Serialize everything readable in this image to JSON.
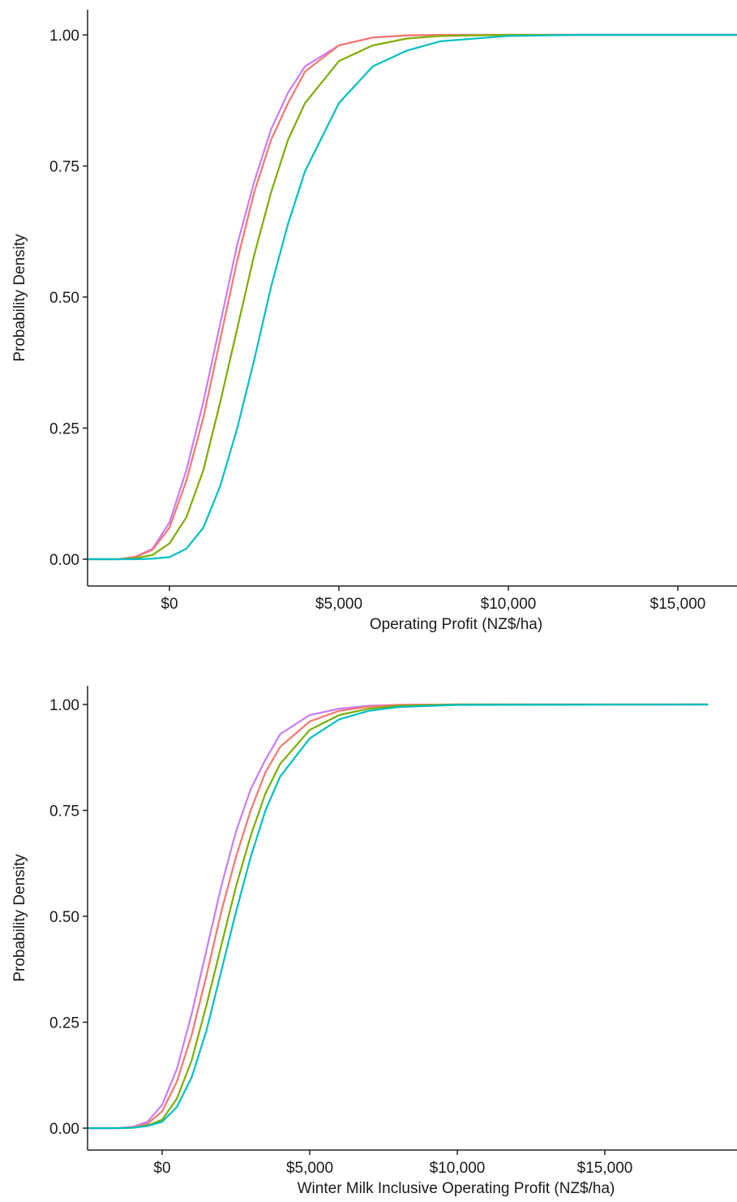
{
  "chart_data": [
    {
      "type": "line",
      "title": "",
      "xlabel": "Operating Profit (NZ$/ha)",
      "ylabel": "Probability Density",
      "xlim": [
        -3000,
        18500
      ],
      "ylim": [
        0,
        1
      ],
      "x_ticks": [
        0,
        5000,
        10000,
        15000
      ],
      "x_tick_labels": [
        "$0",
        "$5,000",
        "$10,000",
        "$15,000"
      ],
      "y_ticks": [
        0,
        0.25,
        0.5,
        0.75,
        1
      ],
      "y_tick_labels": [
        "0.00",
        "0.25",
        "0.50",
        "0.75",
        "1.00"
      ],
      "grid": false,
      "legend": "none",
      "series": [
        {
          "color": "#C77CFF",
          "x": [
            -3000,
            -1500,
            -1000,
            -500,
            0,
            500,
            1000,
            1500,
            2000,
            2500,
            3000,
            3500,
            4000,
            5000,
            6000,
            7000,
            8000,
            10000,
            18500
          ],
          "y": [
            0,
            0,
            0.005,
            0.02,
            0.07,
            0.17,
            0.3,
            0.45,
            0.6,
            0.72,
            0.82,
            0.89,
            0.94,
            0.98,
            0.995,
            0.999,
            1,
            1,
            1
          ]
        },
        {
          "color": "#F8766D",
          "x": [
            -3000,
            -1500,
            -1000,
            -500,
            0,
            500,
            1000,
            1500,
            2000,
            2500,
            3000,
            3500,
            4000,
            5000,
            6000,
            7000,
            8000,
            10000,
            18500
          ],
          "y": [
            0,
            0,
            0.004,
            0.018,
            0.06,
            0.15,
            0.27,
            0.42,
            0.57,
            0.7,
            0.8,
            0.87,
            0.93,
            0.98,
            0.995,
            0.999,
            1,
            1,
            1
          ]
        },
        {
          "color": "#7CAE00",
          "x": [
            -3000,
            -1500,
            -1000,
            -500,
            0,
            500,
            1000,
            1500,
            2000,
            2500,
            3000,
            3500,
            4000,
            5000,
            6000,
            7000,
            8000,
            10000,
            18500
          ],
          "y": [
            0,
            0,
            0.002,
            0.008,
            0.03,
            0.08,
            0.17,
            0.3,
            0.44,
            0.58,
            0.7,
            0.8,
            0.87,
            0.95,
            0.98,
            0.993,
            0.998,
            1,
            1
          ]
        },
        {
          "color": "#00BFC4",
          "x": [
            -3000,
            -1500,
            -1000,
            -500,
            0,
            500,
            1000,
            1500,
            2000,
            2500,
            3000,
            3500,
            4000,
            5000,
            6000,
            7000,
            8000,
            10000,
            12000,
            18500
          ],
          "y": [
            0,
            0,
            0,
            0.001,
            0.004,
            0.02,
            0.06,
            0.14,
            0.25,
            0.38,
            0.52,
            0.64,
            0.74,
            0.87,
            0.94,
            0.97,
            0.988,
            0.998,
            1,
            1
          ]
        }
      ]
    },
    {
      "type": "line",
      "title": "",
      "xlabel": "Winter Milk Inclusive Operating Profit (NZ$/ha)",
      "ylabel": "Probability Density",
      "xlim": [
        -3000,
        18500
      ],
      "ylim": [
        0,
        1
      ],
      "x_ticks": [
        0,
        5000,
        10000,
        15000
      ],
      "x_tick_labels": [
        "$0",
        "$5,000",
        "$10,000",
        "$15,000"
      ],
      "y_ticks": [
        0,
        0.25,
        0.5,
        0.75,
        1
      ],
      "y_tick_labels": [
        "0.00",
        "0.25",
        "0.50",
        "0.75",
        "1.00"
      ],
      "grid": false,
      "legend": "none",
      "series": [
        {
          "color": "#C77CFF",
          "x": [
            -3000,
            -1500,
            -1000,
            -500,
            0,
            500,
            1000,
            1500,
            2000,
            2500,
            3000,
            3500,
            4000,
            5000,
            6000,
            7000,
            8000,
            10000,
            18500
          ],
          "y": [
            0,
            0,
            0.003,
            0.015,
            0.055,
            0.14,
            0.27,
            0.42,
            0.57,
            0.7,
            0.8,
            0.87,
            0.93,
            0.975,
            0.99,
            0.997,
            0.999,
            1,
            1
          ]
        },
        {
          "color": "#F8766D",
          "x": [
            -3000,
            -1500,
            -1000,
            -500,
            0,
            500,
            1000,
            1500,
            2000,
            2500,
            3000,
            3500,
            4000,
            5000,
            6000,
            7000,
            8000,
            10000,
            18500
          ],
          "y": [
            0,
            0,
            0.002,
            0.01,
            0.04,
            0.11,
            0.22,
            0.36,
            0.51,
            0.64,
            0.75,
            0.84,
            0.9,
            0.96,
            0.985,
            0.995,
            0.999,
            1,
            1
          ]
        },
        {
          "color": "#7CAE00",
          "x": [
            -3000,
            -1500,
            -1000,
            -500,
            0,
            500,
            1000,
            1500,
            2000,
            2500,
            3000,
            3500,
            4000,
            5000,
            6000,
            7000,
            8000,
            10000,
            18500
          ],
          "y": [
            0,
            0,
            0.001,
            0.006,
            0.02,
            0.07,
            0.16,
            0.29,
            0.43,
            0.57,
            0.69,
            0.79,
            0.86,
            0.94,
            0.975,
            0.99,
            0.997,
            1,
            1
          ]
        },
        {
          "color": "#00BFC4",
          "x": [
            -3000,
            -1500,
            -1000,
            -500,
            0,
            500,
            1000,
            1500,
            2000,
            2500,
            3000,
            3500,
            4000,
            5000,
            6000,
            7000,
            8000,
            10000,
            18500
          ],
          "y": [
            0,
            0,
            0.001,
            0.005,
            0.015,
            0.05,
            0.12,
            0.23,
            0.37,
            0.51,
            0.64,
            0.75,
            0.83,
            0.92,
            0.965,
            0.985,
            0.994,
            0.999,
            1
          ]
        }
      ]
    }
  ]
}
